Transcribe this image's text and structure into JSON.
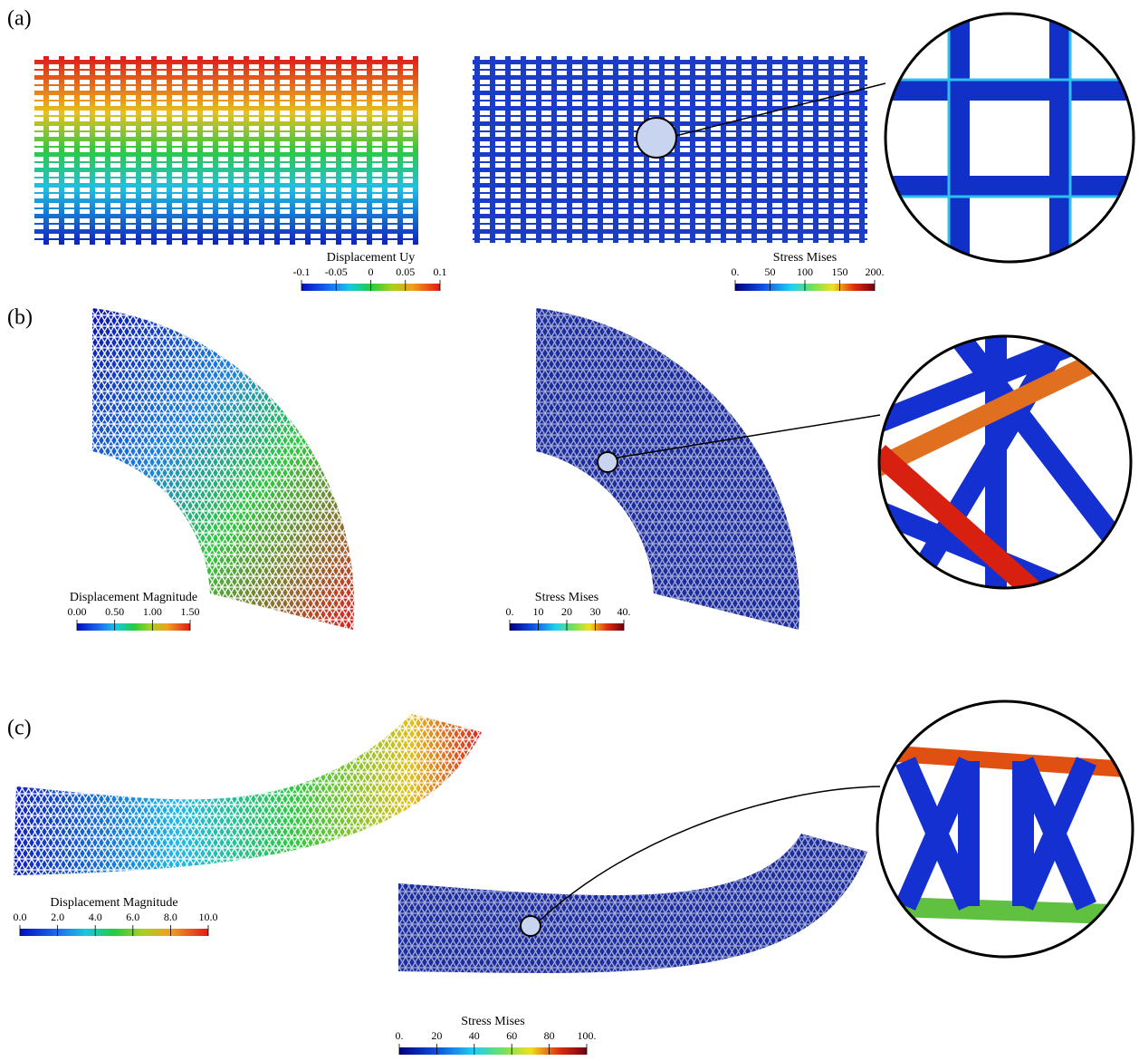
{
  "panels": [
    {
      "label": "(a)",
      "colorbars": [
        {
          "title": "Displacement Uy",
          "ticks": [
            "-0.1",
            "-0.05",
            "0",
            "0.05",
            "0.1"
          ]
        },
        {
          "title": "Stress Mises",
          "ticks": [
            "0.",
            "50",
            "100",
            "150",
            "200."
          ]
        }
      ]
    },
    {
      "label": "(b)",
      "colorbars": [
        {
          "title": "Displacement Magnitude",
          "ticks": [
            "0.00",
            "0.50",
            "1.00",
            "1.50"
          ]
        },
        {
          "title": "Stress Mises",
          "ticks": [
            "0.",
            "10",
            "20",
            "30",
            "40."
          ]
        }
      ]
    },
    {
      "label": "(c)",
      "colorbars": [
        {
          "title": "Displacement Magnitude",
          "ticks": [
            "0.0",
            "2.0",
            "4.0",
            "6.0",
            "8.0",
            "10.0"
          ]
        },
        {
          "title": "Stress Mises",
          "ticks": [
            "0.",
            "20",
            "40",
            "60",
            "80",
            "100."
          ]
        }
      ]
    }
  ]
}
